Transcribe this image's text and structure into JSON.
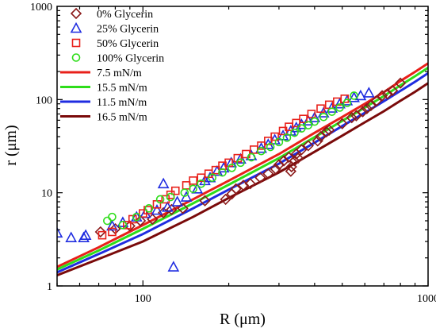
{
  "chart_data": {
    "type": "scatter",
    "title": "",
    "xlabel": "R (μm)",
    "ylabel": "r (μm)",
    "x_scale": "log",
    "y_scale": "log",
    "xlim": [
      50,
      1000
    ],
    "ylim": [
      1,
      1000
    ],
    "x_ticks": [
      {
        "v": 100,
        "label": "100"
      },
      {
        "v": 1000,
        "label": "1000"
      }
    ],
    "y_ticks": [
      {
        "v": 1,
        "label": "1"
      },
      {
        "v": 10,
        "label": "10"
      },
      {
        "v": 100,
        "label": "100"
      },
      {
        "v": 1000,
        "label": "1000"
      }
    ],
    "grid": false,
    "legend_position": "top-left",
    "series": [
      {
        "name": "0% Glycerin",
        "kind": "scatter",
        "marker": "diamond",
        "color": "#8B1A1A",
        "points": [
          [
            71,
            3.8
          ],
          [
            80,
            4.1
          ],
          [
            90,
            4.4
          ],
          [
            98,
            5.0
          ],
          [
            108,
            5.2
          ],
          [
            118,
            6.1
          ],
          [
            126,
            6.6
          ],
          [
            138,
            6.8
          ],
          [
            165,
            8.2
          ],
          [
            195,
            8.5
          ],
          [
            205,
            9.7
          ],
          [
            212,
            11.0
          ],
          [
            225,
            12.0
          ],
          [
            238,
            12.5
          ],
          [
            258,
            14.5
          ],
          [
            275,
            16.0
          ],
          [
            292,
            18.0
          ],
          [
            300,
            20.0
          ],
          [
            312,
            22.0
          ],
          [
            325,
            24.0
          ],
          [
            330,
            17.0
          ],
          [
            332,
            19.0
          ],
          [
            340,
            22.0
          ],
          [
            350,
            23.5
          ],
          [
            345,
            26.0
          ],
          [
            360,
            29.0
          ],
          [
            380,
            32.0
          ],
          [
            410,
            36.0
          ],
          [
            420,
            40.0
          ],
          [
            440,
            45.0
          ],
          [
            450,
            47.0
          ],
          [
            500,
            55.0
          ],
          [
            540,
            64.0
          ],
          [
            560,
            67.0
          ],
          [
            590,
            74.0
          ],
          [
            610,
            80.0
          ],
          [
            630,
            86.0
          ],
          [
            660,
            97.0
          ],
          [
            690,
            110.0
          ],
          [
            720,
            115.0
          ],
          [
            750,
            125.0
          ],
          [
            800,
            150.0
          ]
        ]
      },
      {
        "name": "25% Glycerin",
        "kind": "scatter",
        "marker": "triangle",
        "color": "#1F2CE0",
        "points": [
          [
            50,
            3.7
          ],
          [
            56,
            3.3
          ],
          [
            62,
            3.3
          ],
          [
            63,
            3.5
          ],
          [
            78,
            4.4
          ],
          [
            85,
            4.8
          ],
          [
            95,
            5.5
          ],
          [
            102,
            6.0
          ],
          [
            112,
            6.5
          ],
          [
            118,
            12.5
          ],
          [
            122,
            7.0
          ],
          [
            128,
            1.6
          ],
          [
            132,
            8.0
          ],
          [
            142,
            9.0
          ],
          [
            155,
            11.0
          ],
          [
            165,
            13.5
          ],
          [
            172,
            14.5
          ],
          [
            182,
            17.0
          ],
          [
            192,
            18.5
          ],
          [
            204,
            21.0
          ],
          [
            220,
            23.0
          ],
          [
            240,
            25.0
          ],
          [
            260,
            30.0
          ],
          [
            275,
            33.0
          ],
          [
            290,
            37.0
          ],
          [
            310,
            41.0
          ],
          [
            330,
            46.0
          ],
          [
            345,
            50.0
          ],
          [
            360,
            54.0
          ],
          [
            380,
            59.0
          ],
          [
            400,
            64.0
          ],
          [
            430,
            72.0
          ],
          [
            460,
            81.0
          ],
          [
            490,
            90.0
          ],
          [
            520,
            97.0
          ],
          [
            550,
            105.0
          ],
          [
            580,
            110.0
          ],
          [
            620,
            118.0
          ]
        ]
      },
      {
        "name": "50% Glycerin",
        "kind": "scatter",
        "marker": "square",
        "color": "#E8201A",
        "points": [
          [
            72,
            3.5
          ],
          [
            78,
            3.8
          ],
          [
            88,
            4.5
          ],
          [
            92,
            5.2
          ],
          [
            100,
            6.0
          ],
          [
            104,
            6.5
          ],
          [
            112,
            7.5
          ],
          [
            120,
            8.5
          ],
          [
            125,
            9.5
          ],
          [
            130,
            10.5
          ],
          [
            142,
            12.0
          ],
          [
            150,
            13.5
          ],
          [
            160,
            14.5
          ],
          [
            170,
            16.0
          ],
          [
            180,
            17.5
          ],
          [
            190,
            19.5
          ],
          [
            200,
            21.0
          ],
          [
            215,
            23.5
          ],
          [
            230,
            26.0
          ],
          [
            245,
            29.0
          ],
          [
            260,
            32.0
          ],
          [
            275,
            36.0
          ],
          [
            290,
            40.0
          ],
          [
            310,
            46.0
          ],
          [
            325,
            51.0
          ],
          [
            345,
            56.0
          ],
          [
            365,
            62.0
          ],
          [
            390,
            70.0
          ],
          [
            420,
            80.0
          ],
          [
            450,
            88.0
          ],
          [
            480,
            95.0
          ],
          [
            510,
            102.0
          ]
        ]
      },
      {
        "name": "100% Glycerin",
        "kind": "scatter",
        "marker": "circle",
        "color": "#2EDD1A",
        "points": [
          [
            75,
            5.0
          ],
          [
            78,
            5.5
          ],
          [
            85,
            4.5
          ],
          [
            95,
            5.5
          ],
          [
            105,
            6.8
          ],
          [
            115,
            8.5
          ],
          [
            125,
            9.0
          ],
          [
            140,
            10.0
          ],
          [
            150,
            11.0
          ],
          [
            160,
            12.5
          ],
          [
            175,
            14.5
          ],
          [
            190,
            16.5
          ],
          [
            205,
            18.5
          ],
          [
            220,
            21.0
          ],
          [
            240,
            24.0
          ],
          [
            260,
            28.0
          ],
          [
            280,
            31.0
          ],
          [
            300,
            35.0
          ],
          [
            320,
            39.0
          ],
          [
            340,
            44.0
          ],
          [
            360,
            49.0
          ],
          [
            380,
            53.0
          ],
          [
            400,
            58.0
          ],
          [
            430,
            65.0
          ],
          [
            460,
            74.0
          ],
          [
            490,
            82.0
          ],
          [
            520,
            92.0
          ],
          [
            550,
            110.0
          ]
        ]
      },
      {
        "name": "7.5 mN/m",
        "kind": "line",
        "color": "#E8201A",
        "points": [
          [
            50,
            1.6
          ],
          [
            70,
            2.6
          ],
          [
            100,
            4.5
          ],
          [
            150,
            8.5
          ],
          [
            200,
            13.5
          ],
          [
            300,
            26.0
          ],
          [
            400,
            44.0
          ],
          [
            500,
            65.0
          ],
          [
            600,
            90.0
          ],
          [
            700,
            120.0
          ],
          [
            800,
            158.0
          ],
          [
            900,
            198.0
          ],
          [
            1000,
            245.0
          ]
        ]
      },
      {
        "name": "15.5 mN/m",
        "kind": "line",
        "color": "#2EDD1A",
        "points": [
          [
            50,
            1.5
          ],
          [
            70,
            2.4
          ],
          [
            100,
            4.1
          ],
          [
            150,
            7.7
          ],
          [
            200,
            12.2
          ],
          [
            300,
            23.5
          ],
          [
            400,
            39.5
          ],
          [
            500,
            59.0
          ],
          [
            600,
            82.0
          ],
          [
            700,
            109.0
          ],
          [
            800,
            142.0
          ],
          [
            900,
            178.0
          ],
          [
            1000,
            220.0
          ]
        ]
      },
      {
        "name": "11.5 mN/m",
        "kind": "line",
        "color": "#1F2CE0",
        "points": [
          [
            50,
            1.4
          ],
          [
            70,
            2.2
          ],
          [
            100,
            3.6
          ],
          [
            150,
            6.8
          ],
          [
            200,
            10.8
          ],
          [
            300,
            20.5
          ],
          [
            400,
            34.5
          ],
          [
            500,
            52.0
          ],
          [
            600,
            72.0
          ],
          [
            700,
            96.0
          ],
          [
            800,
            124.0
          ],
          [
            900,
            155.0
          ],
          [
            1000,
            192.0
          ]
        ]
      },
      {
        "name": "16.5 mN/m",
        "kind": "line",
        "color": "#7A0A0A",
        "points": [
          [
            50,
            1.3
          ],
          [
            70,
            1.95
          ],
          [
            100,
            3.0
          ],
          [
            150,
            5.5
          ],
          [
            200,
            8.8
          ],
          [
            300,
            16.5
          ],
          [
            400,
            27.5
          ],
          [
            500,
            41.0
          ],
          [
            600,
            57.0
          ],
          [
            700,
            75.0
          ],
          [
            800,
            97.0
          ],
          [
            900,
            121.0
          ],
          [
            1000,
            150.0
          ]
        ]
      }
    ]
  }
}
